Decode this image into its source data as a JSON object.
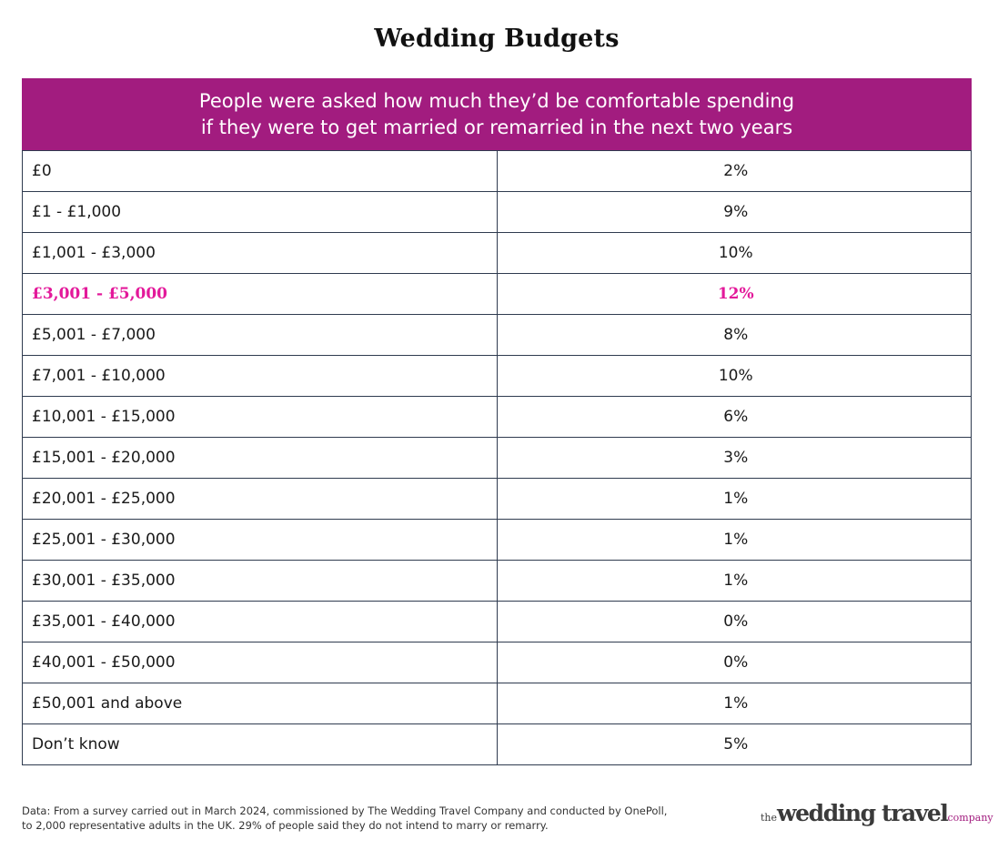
{
  "chart_data": {
    "type": "table",
    "title": "Wedding Budgets",
    "header": "People were asked how much they'd be comfortable spending if they were to get married or remarried in the next two years",
    "header_lines": [
      "People were asked how much they’d be comfortable spending",
      "if they were to get married or remarried in the next two years"
    ],
    "rows": [
      {
        "range": "£0",
        "percent": "2%",
        "value": 2,
        "highlight": false
      },
      {
        "range": "£1 - £1,000",
        "percent": "9%",
        "value": 9,
        "highlight": false
      },
      {
        "range": "£1,001 - £3,000",
        "percent": "10%",
        "value": 10,
        "highlight": false
      },
      {
        "range": "£3,001 - £5,000",
        "percent": "12%",
        "value": 12,
        "highlight": true
      },
      {
        "range": "£5,001 - £7,000",
        "percent": "8%",
        "value": 8,
        "highlight": false
      },
      {
        "range": "£7,001 - £10,000",
        "percent": "10%",
        "value": 10,
        "highlight": false
      },
      {
        "range": "£10,001 - £15,000",
        "percent": "6%",
        "value": 6,
        "highlight": false
      },
      {
        "range": "£15,001 - £20,000",
        "percent": "3%",
        "value": 3,
        "highlight": false
      },
      {
        "range": "£20,001 - £25,000",
        "percent": "1%",
        "value": 1,
        "highlight": false
      },
      {
        "range": "£25,001 - £30,000",
        "percent": "1%",
        "value": 1,
        "highlight": false
      },
      {
        "range": "£30,001 - £35,000",
        "percent": "1%",
        "value": 1,
        "highlight": false
      },
      {
        "range": "£35,001 - £40,000",
        "percent": "0%",
        "value": 0,
        "highlight": false
      },
      {
        "range": "£40,001 - £50,000",
        "percent": "0%",
        "value": 0,
        "highlight": false
      },
      {
        "range": "£50,001 and above",
        "percent": "1%",
        "value": 1,
        "highlight": false
      },
      {
        "range": "Don’t know",
        "percent": "5%",
        "value": 5,
        "highlight": false
      }
    ],
    "colors": {
      "header_bg": "#a21c7f",
      "highlight_text": "#e3199a",
      "border": "#2f3b4f"
    }
  },
  "footnote_lines": [
    "Data: From a survey carried out in March 2024, commissioned by The Wedding Travel Company and conducted by OnePoll,",
    "to 2,000 representative adults in the UK. 29% of people said they do not intend to marry or remarry."
  ],
  "logo": {
    "prefix": "the",
    "main": "wedding travel",
    "suffix": "company"
  }
}
